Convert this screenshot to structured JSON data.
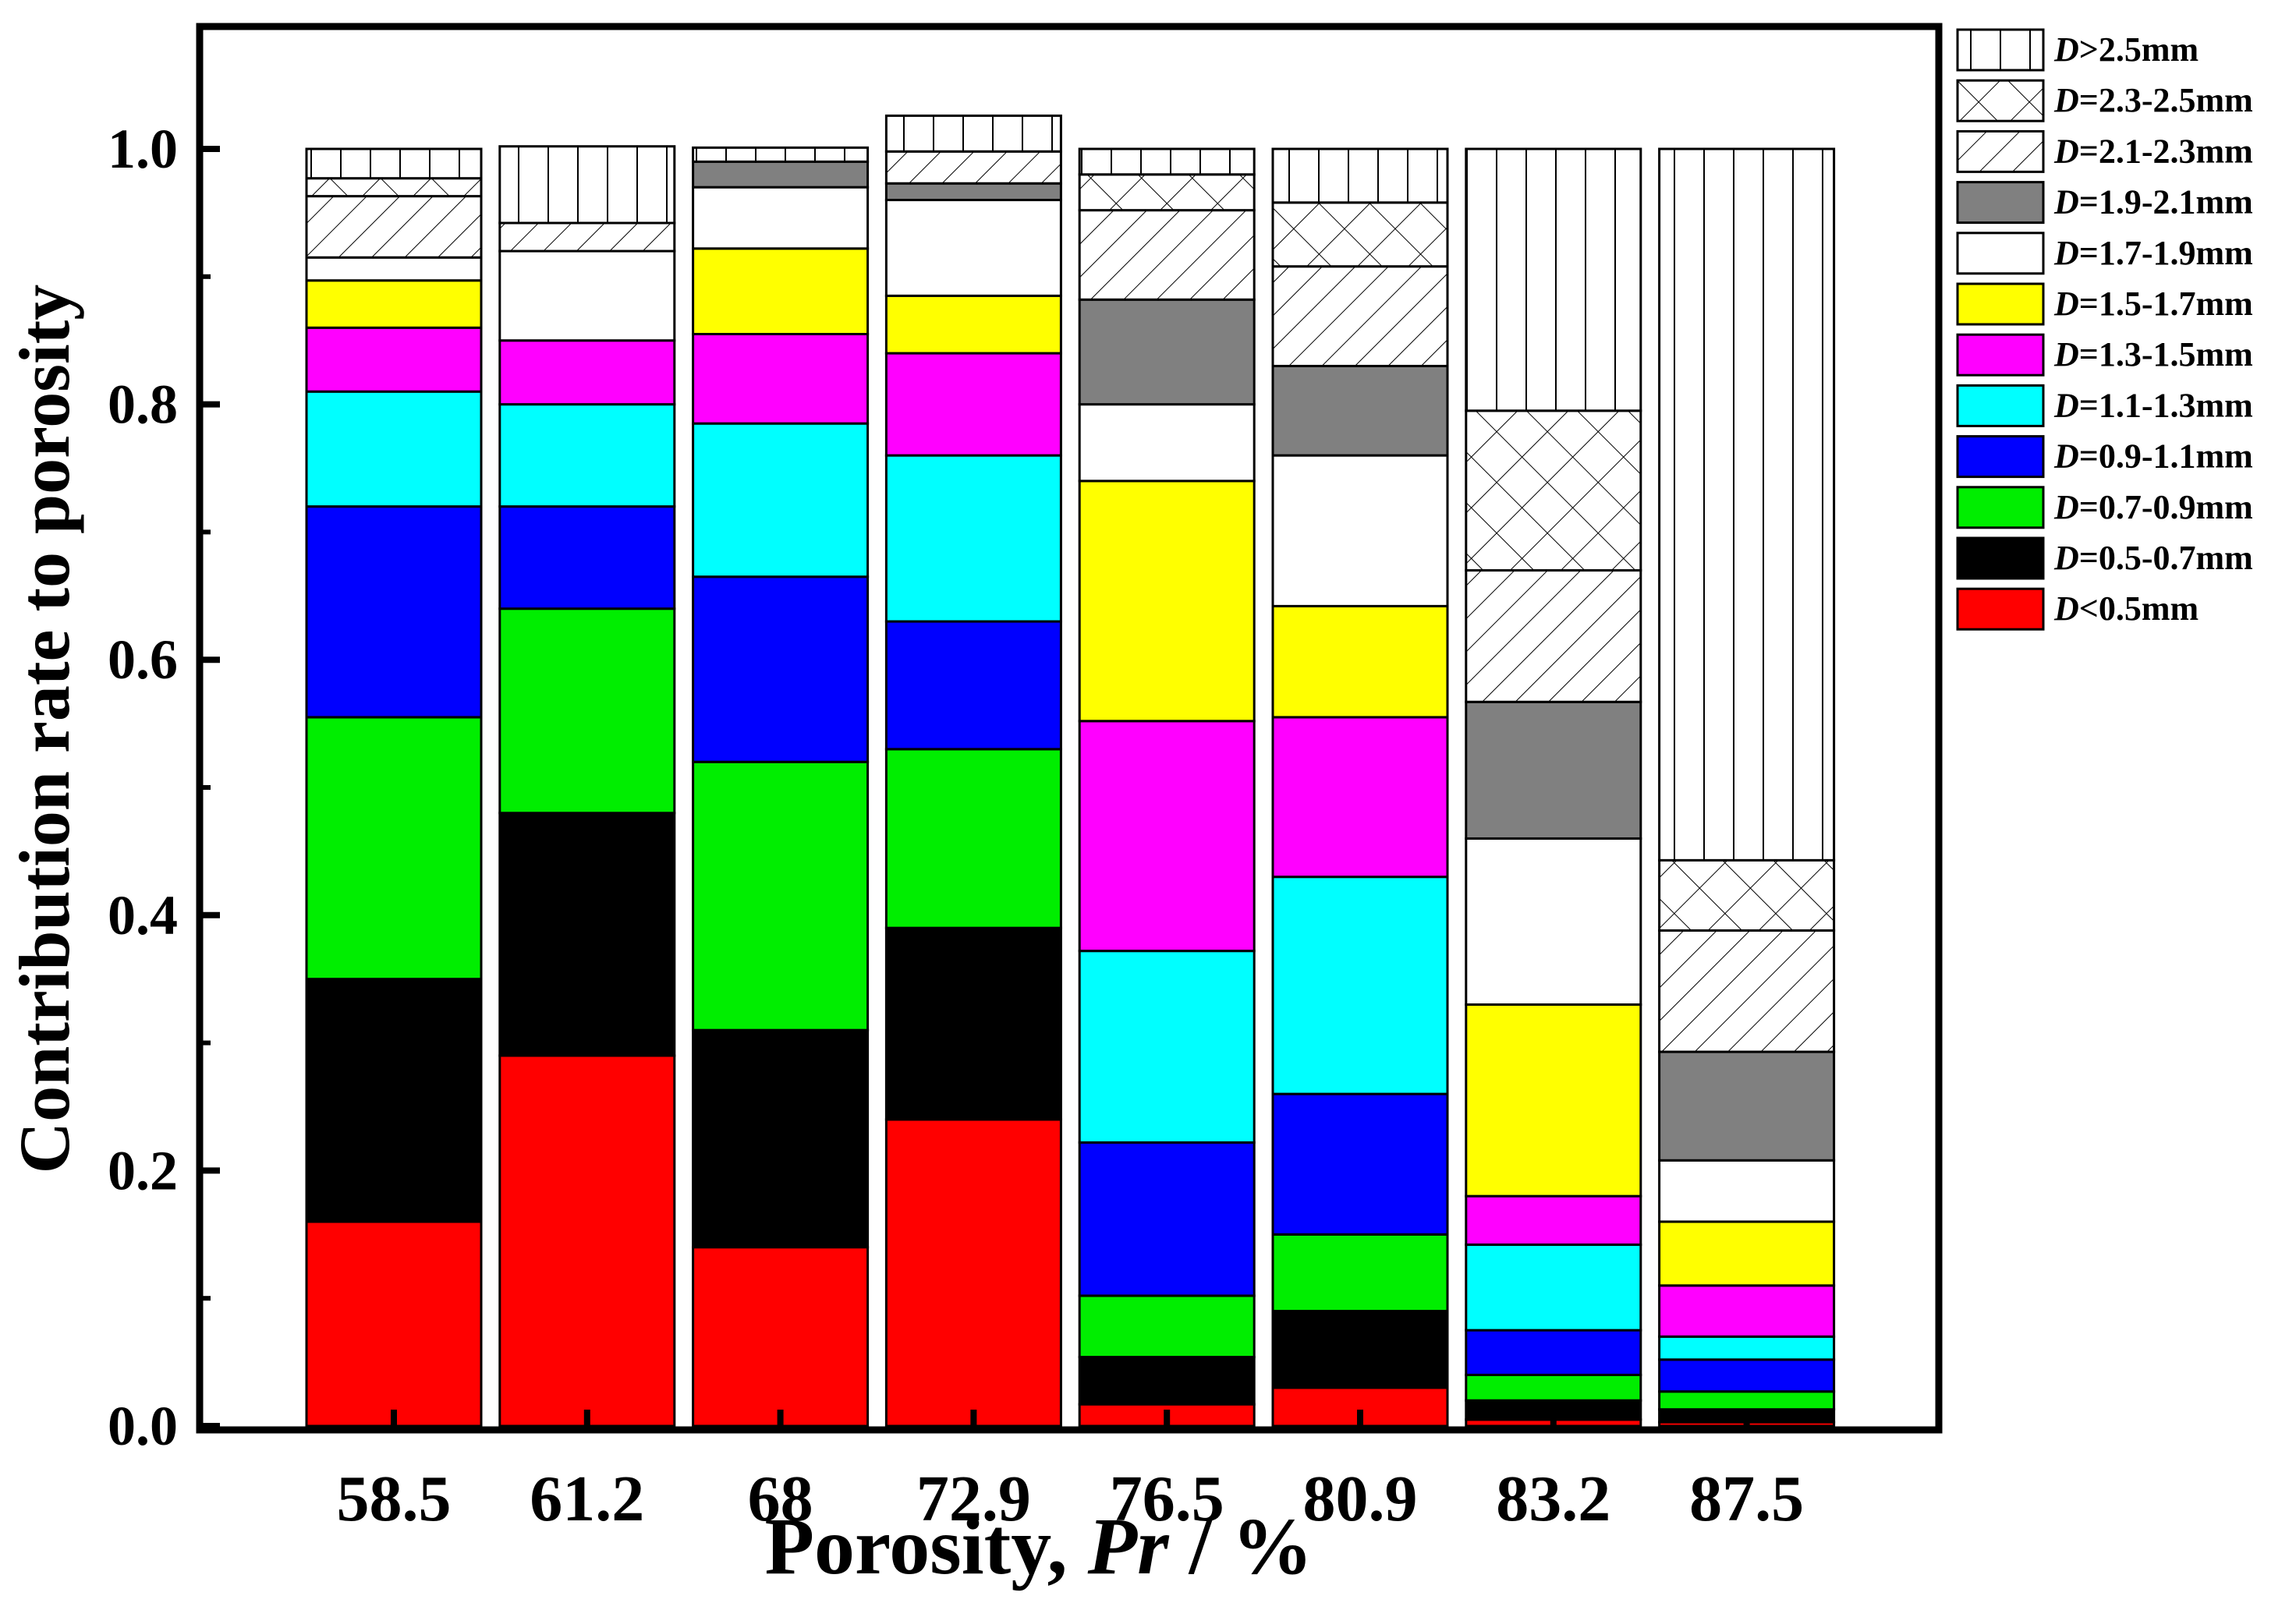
{
  "chart_data": {
    "type": "bar",
    "stacked": true,
    "ylabel": "Contribution rate to porosity",
    "xlabel_prefix": "Porosity, ",
    "xlabel_var": "Pr",
    "xlabel_suffix": " / %",
    "ylim": [
      0,
      1.1
    ],
    "y_ticks": [
      0.0,
      0.2,
      0.4,
      0.6,
      0.8,
      1.0
    ],
    "y_tick_labels": [
      "0.0",
      "0.2",
      "0.4",
      "0.6",
      "0.8",
      "1.0"
    ],
    "categories": [
      "58.5",
      "61.2",
      "68",
      "72.9",
      "76.5",
      "80.9",
      "83.2",
      "87.5"
    ],
    "legend_position": "outside top-right",
    "series": [
      {
        "name": "D<0.5mm",
        "var": "D",
        "range": "<0.5mm",
        "fill": "#ff0000",
        "pattern": "solid",
        "values": [
          0.16,
          0.29,
          0.14,
          0.24,
          0.017,
          0.03,
          0.005,
          0.003
        ]
      },
      {
        "name": "D=0.5-0.7mm",
        "var": "D",
        "range": "=0.5-0.7mm",
        "fill": "#000000",
        "pattern": "solid",
        "values": [
          0.19,
          0.19,
          0.17,
          0.15,
          0.037,
          0.06,
          0.015,
          0.01
        ]
      },
      {
        "name": "D=0.7-0.9mm",
        "var": "D",
        "range": "=0.7-0.9mm",
        "fill": "#00ee00",
        "pattern": "solid",
        "values": [
          0.205,
          0.16,
          0.21,
          0.14,
          0.048,
          0.06,
          0.02,
          0.014
        ]
      },
      {
        "name": "D=0.9-1.1mm",
        "var": "D",
        "range": "=0.9-1.1mm",
        "fill": "#0000ff",
        "pattern": "solid",
        "values": [
          0.165,
          0.08,
          0.145,
          0.1,
          0.12,
          0.11,
          0.035,
          0.025
        ]
      },
      {
        "name": "D=1.1-1.3mm",
        "var": "D",
        "range": "=1.1-1.3mm",
        "fill": "#00ffff",
        "pattern": "solid",
        "values": [
          0.09,
          0.08,
          0.12,
          0.13,
          0.15,
          0.17,
          0.067,
          0.018
        ]
      },
      {
        "name": "D=1.3-1.5mm",
        "var": "D",
        "range": "=1.3-1.5mm",
        "fill": "#ff00ff",
        "pattern": "solid",
        "values": [
          0.05,
          0.05,
          0.07,
          0.08,
          0.18,
          0.125,
          0.038,
          0.04
        ]
      },
      {
        "name": "D=1.5-1.7mm",
        "var": "D",
        "range": "=1.5-1.7mm",
        "fill": "#ffff00",
        "pattern": "solid",
        "values": [
          0.037,
          0.0,
          0.067,
          0.045,
          0.188,
          0.087,
          0.15,
          0.05
        ]
      },
      {
        "name": "D=1.7-1.9mm",
        "var": "D",
        "range": "=1.7-1.9mm",
        "fill": "#ffffff",
        "pattern": "solid",
        "values": [
          0.018,
          0.07,
          0.048,
          0.075,
          0.06,
          0.118,
          0.13,
          0.048
        ]
      },
      {
        "name": "D=1.9-2.1mm",
        "var": "D",
        "range": "=1.9-2.1mm",
        "fill": "#808080",
        "pattern": "solid",
        "values": [
          0.0,
          0.0,
          0.02,
          0.013,
          0.082,
          0.07,
          0.107,
          0.085
        ]
      },
      {
        "name": "D=2.1-2.3mm",
        "var": "D",
        "range": "=2.1-2.3mm",
        "fill": "#ffffff",
        "pattern": "diag",
        "values": [
          0.048,
          0.022,
          0.0,
          0.025,
          0.07,
          0.078,
          0.103,
          0.095
        ]
      },
      {
        "name": "D=2.3-2.5mm",
        "var": "D",
        "range": "=2.3-2.5mm",
        "fill": "#ffffff",
        "pattern": "cross",
        "values": [
          0.014,
          0.0,
          0.0,
          0.0,
          0.028,
          0.05,
          0.125,
          0.055
        ]
      },
      {
        "name": "D>2.5mm",
        "var": "D",
        "range": ">2.5mm",
        "fill": "#ffffff",
        "pattern": "vert",
        "values": [
          0.023,
          0.06,
          0.011,
          0.028,
          0.02,
          0.042,
          0.205,
          0.557
        ]
      }
    ]
  }
}
